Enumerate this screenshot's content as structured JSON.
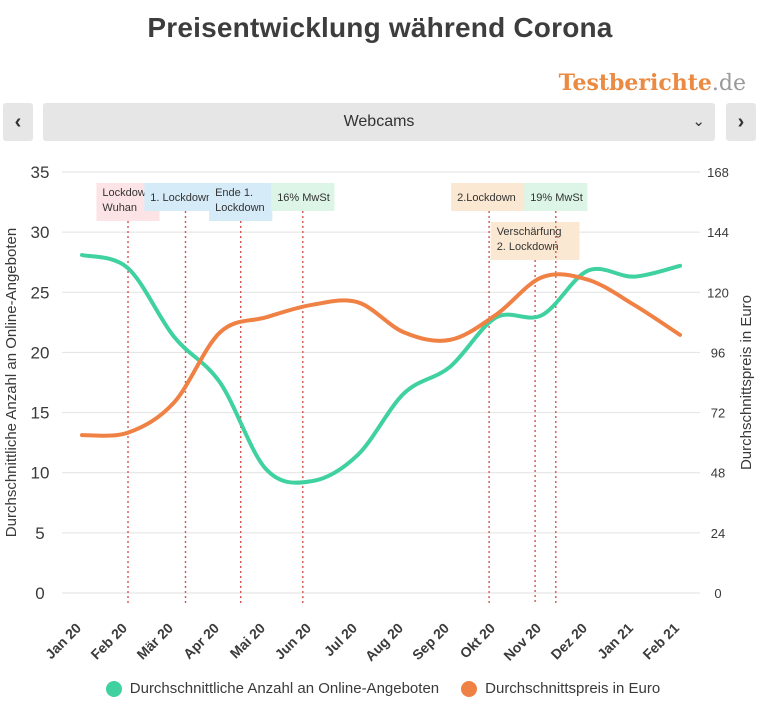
{
  "header": {
    "title": "Preisentwicklung während Corona",
    "brand_name": "Testberichte",
    "brand_tld": ".de",
    "brand_color": "#ea8a43"
  },
  "nav": {
    "prev_icon": "chevron-left-icon",
    "prev_glyph": "‹",
    "next_icon": "chevron-right-icon",
    "next_glyph": "›",
    "category_selected": "Webcams",
    "dropdown_icon": "chevron-down-icon",
    "dropdown_glyph": "⌄"
  },
  "chart_data": {
    "type": "line",
    "title": "",
    "categories": [
      "Jan 20",
      "Feb 20",
      "Mär 20",
      "Apr 20",
      "Mai 20",
      "Jun 20",
      "Jul 20",
      "Aug 20",
      "Sep 20",
      "Okt 20",
      "Nov 20",
      "Dez 20",
      "Jan 21",
      "Feb 21"
    ],
    "y_left": {
      "label": "Durchschnittliche Anzahl an Online-Angeboten",
      "min": 0,
      "max": 35,
      "ticks": [
        0,
        5,
        10,
        15,
        20,
        25,
        30,
        35
      ]
    },
    "y_right": {
      "label": "Durchschnittspreis in Euro",
      "min": 0,
      "max": 168,
      "ticks": [
        0,
        24,
        48,
        72,
        96,
        120,
        144,
        168
      ]
    },
    "grid": true,
    "legend_position": "bottom",
    "series": [
      {
        "name": "Durchschnittliche Anzahl an Online-Angeboten",
        "axis": "left",
        "color": "#3fd1a0",
        "values": [
          28.1,
          27.0,
          21.3,
          17.5,
          10.3,
          9.3,
          11.5,
          16.6,
          18.8,
          22.9,
          23.1,
          26.8,
          26.3,
          27.2
        ]
      },
      {
        "name": "Durchschnittspreis in Euro",
        "axis": "right",
        "color": "#f08144",
        "values": [
          63,
          64,
          76,
          104,
          110,
          115,
          116,
          104,
          101,
          111,
          126,
          125,
          115,
          103
        ]
      }
    ],
    "annotations": [
      {
        "label": [
          "Lockdown",
          "Wuhan"
        ],
        "x": 1.0,
        "bg": "#fce4e6",
        "row": 0
      },
      {
        "label": [
          "1. Lockdown"
        ],
        "x": 2.25,
        "bg": "#d6ebf8",
        "row": 0
      },
      {
        "label": [
          "Ende 1.",
          "Lockdown"
        ],
        "x": 3.45,
        "bg": "#d6ebf8",
        "row": 0
      },
      {
        "label": [
          "16% MwSt"
        ],
        "x": 4.8,
        "bg": "#dcf5e6",
        "row": 0
      },
      {
        "label": [
          "2.Lockdown"
        ],
        "x": 8.85,
        "bg": "#fbe8d2",
        "row": 0
      },
      {
        "label": [
          "Verschärfung",
          "2. Lockdown"
        ],
        "x": 9.85,
        "bg": "#fbe8d2",
        "row": 1
      },
      {
        "label": [
          "19% MwSt"
        ],
        "x": 10.3,
        "bg": "#dcf5e6",
        "row": 0
      }
    ]
  }
}
